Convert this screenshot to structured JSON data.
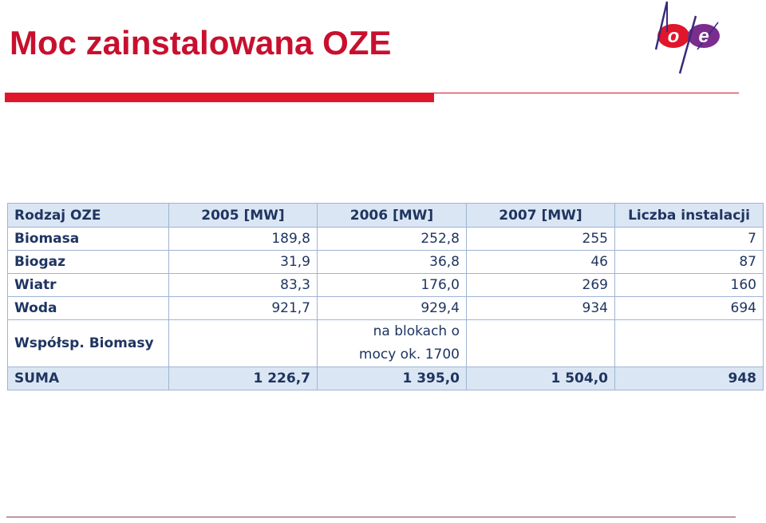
{
  "slide": {
    "title": "Moc zainstalowana OZE"
  },
  "logo": {
    "name": "bpe-logo",
    "letters": [
      "o",
      "e"
    ],
    "colors": {
      "left_circle": "#e0162b",
      "right_circle": "#7b2d8e",
      "stroke": "#3a2a7a"
    }
  },
  "colors": {
    "accent_red": "#e0162b",
    "table_header_bg": "#dbe6f4",
    "table_text": "#1f3560",
    "table_border": "#9fb4d3"
  },
  "table": {
    "headers": [
      "Rodzaj OZE",
      "2005 [MW]",
      "2006 [MW]",
      "2007 [MW]",
      "Liczba instalacji"
    ],
    "rows": [
      {
        "type": "Biomasa",
        "y2005": "189,8",
        "y2006": "252,8",
        "y2007": "255",
        "count": "7"
      },
      {
        "type": "Biogaz",
        "y2005": "31,9",
        "y2006": "36,8",
        "y2007": "46",
        "count": "87"
      },
      {
        "type": "Wiatr",
        "y2005": "83,3",
        "y2006": "176,0",
        "y2007": "269",
        "count": "160"
      },
      {
        "type": "Woda",
        "y2005": "921,7",
        "y2006": "929,4",
        "y2007": "934",
        "count": "694"
      },
      {
        "type": "Współsp. Biomasy",
        "y2005": "",
        "y2006_line1": "na blokach o",
        "y2006_line2": "mocy ok. 1700",
        "y2007": "",
        "count": ""
      }
    ],
    "total": {
      "label": "SUMA",
      "y2005": "1 226,7",
      "y2006": "1 395,0",
      "y2007": "1 504,0",
      "count": "948"
    }
  }
}
